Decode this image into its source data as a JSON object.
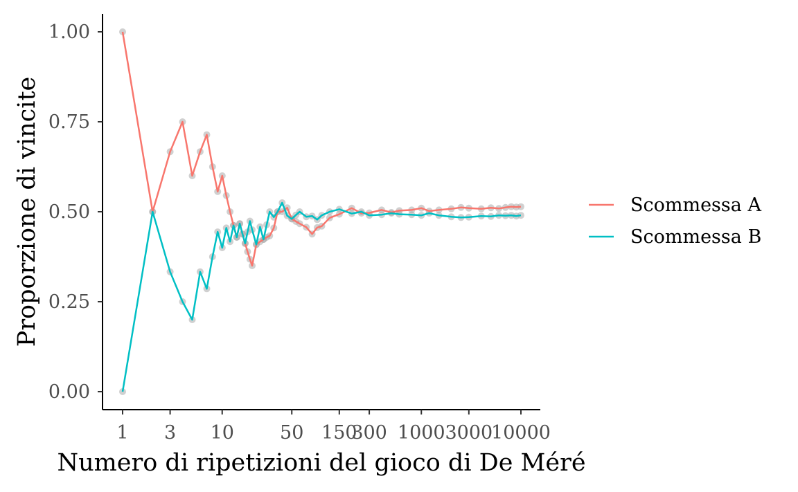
{
  "chart_data": {
    "type": "line",
    "title": "",
    "xlabel": "Numero di ripetizioni del gioco di De Méré",
    "ylabel": "Proporzione di vincite",
    "x_scale": "log10",
    "xlim": [
      0.8,
      13500
    ],
    "ylim": [
      -0.05,
      1.05
    ],
    "x_ticks": [
      1,
      3,
      10,
      50,
      150,
      300,
      1000,
      3000,
      10000
    ],
    "x_tick_labels": [
      "1",
      "3",
      "10",
      "50",
      "150",
      "300",
      "1000",
      "3000",
      "10000"
    ],
    "y_ticks": [
      0,
      0.25,
      0.5,
      0.75,
      1
    ],
    "y_tick_labels": [
      "0.00",
      "0.25",
      "0.50",
      "0.75",
      "1.00"
    ],
    "grid": false,
    "legend_position": "right",
    "point_color": "#aaaaaa",
    "series": [
      {
        "name": "Scommessa A",
        "color": "#F8766D",
        "x": [
          1,
          2,
          3,
          4,
          5,
          6,
          7,
          8,
          9,
          10,
          11,
          12,
          13,
          14,
          15,
          16,
          17,
          18,
          19,
          20,
          22,
          24,
          26,
          28,
          30,
          33,
          36,
          40,
          45,
          50,
          55,
          60,
          70,
          80,
          90,
          100,
          120,
          150,
          200,
          250,
          300,
          400,
          500,
          600,
          800,
          1000,
          1200,
          1500,
          2000,
          2500,
          3000,
          4000,
          5000,
          6000,
          7000,
          8000,
          9000,
          10000
        ],
        "values": [
          1.0,
          0.5,
          0.667,
          0.75,
          0.6,
          0.667,
          0.714,
          0.625,
          0.556,
          0.6,
          0.545,
          0.5,
          0.462,
          0.429,
          0.467,
          0.438,
          0.412,
          0.389,
          0.368,
          0.35,
          0.409,
          0.417,
          0.423,
          0.429,
          0.433,
          0.455,
          0.5,
          0.5,
          0.511,
          0.48,
          0.473,
          0.467,
          0.457,
          0.438,
          0.456,
          0.46,
          0.483,
          0.493,
          0.51,
          0.496,
          0.497,
          0.505,
          0.498,
          0.503,
          0.505,
          0.51,
          0.502,
          0.505,
          0.508,
          0.512,
          0.51,
          0.508,
          0.511,
          0.509,
          0.512,
          0.514,
          0.513,
          0.514
        ]
      },
      {
        "name": "Scommessa B",
        "color": "#00BFC4",
        "x": [
          1,
          2,
          3,
          4,
          5,
          6,
          7,
          8,
          9,
          10,
          11,
          12,
          13,
          14,
          15,
          16,
          17,
          18,
          19,
          20,
          22,
          24,
          26,
          28,
          30,
          33,
          36,
          40,
          45,
          50,
          55,
          60,
          70,
          80,
          90,
          100,
          120,
          150,
          200,
          250,
          300,
          400,
          500,
          600,
          800,
          1000,
          1200,
          1500,
          2000,
          2500,
          3000,
          4000,
          5000,
          6000,
          7000,
          8000,
          9000,
          10000
        ],
        "values": [
          0.0,
          0.5,
          0.333,
          0.25,
          0.2,
          0.333,
          0.286,
          0.375,
          0.444,
          0.4,
          0.455,
          0.417,
          0.462,
          0.429,
          0.467,
          0.438,
          0.412,
          0.444,
          0.474,
          0.45,
          0.409,
          0.458,
          0.423,
          0.464,
          0.5,
          0.485,
          0.5,
          0.525,
          0.489,
          0.48,
          0.491,
          0.5,
          0.486,
          0.488,
          0.478,
          0.49,
          0.5,
          0.507,
          0.495,
          0.5,
          0.49,
          0.492,
          0.496,
          0.493,
          0.492,
          0.49,
          0.496,
          0.49,
          0.486,
          0.484,
          0.485,
          0.488,
          0.487,
          0.49,
          0.489,
          0.49,
          0.488,
          0.49
        ]
      }
    ]
  }
}
